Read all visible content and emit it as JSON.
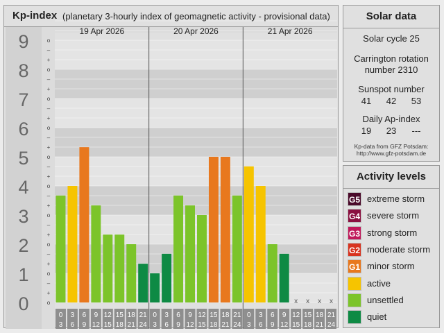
{
  "kp": {
    "title": "Kp-index",
    "subtitle": "(planetary 3-hourly index of geomagnetic activity - provisional data)",
    "y_labels": [
      "0",
      "1",
      "2",
      "3",
      "4",
      "5",
      "6",
      "7",
      "8",
      "9"
    ],
    "mini_labels": [
      "o",
      "+",
      "–",
      "o",
      "+",
      "–",
      "o",
      "+",
      "–",
      "o",
      "+",
      "–",
      "o",
      "+",
      "–",
      "o",
      "+",
      "–",
      "o",
      "+",
      "–",
      "o",
      "+",
      "–",
      "o",
      "+",
      "–",
      "o"
    ],
    "hours_start": [
      "0",
      "3",
      "6",
      "9",
      "12",
      "15",
      "18",
      "21"
    ],
    "hours_end": [
      "3",
      "6",
      "9",
      "12",
      "15",
      "18",
      "21",
      "24"
    ]
  },
  "chart_data": {
    "type": "bar",
    "days": [
      "19 Apr 2026",
      "20 Apr 2026",
      "21 Apr 2026"
    ],
    "ylim": [
      0,
      9
    ],
    "values": [
      [
        3.67,
        4.0,
        5.33,
        3.33,
        2.33,
        2.33,
        2.0,
        1.33
      ],
      [
        1.0,
        1.67,
        3.67,
        3.33,
        3.0,
        5.0,
        5.0,
        3.67
      ],
      [
        4.67,
        4.0,
        2.0,
        1.67,
        null,
        null,
        null,
        null
      ]
    ],
    "missing_marker": "x"
  },
  "solar": {
    "title": "Solar data",
    "cycle_label": "Solar cycle 25",
    "rotation_line1": "Carrington rotation",
    "rotation_line2": "number 2310",
    "sunspot_label": "Sunspot number",
    "sunspot_values": [
      "41",
      "42",
      "53"
    ],
    "ap_label": "Daily Ap-index",
    "ap_values": [
      "19",
      "23",
      "---"
    ],
    "source_line1": "Kp-data from GFZ Potsdam:",
    "source_line2": "http://www.gfz-potsdam.de"
  },
  "activity": {
    "title": "Activity levels",
    "levels": [
      {
        "code": "G5",
        "label": "extreme storm",
        "color": "#4a0a2a"
      },
      {
        "code": "G4",
        "label": "severe storm",
        "color": "#8a1040"
      },
      {
        "code": "G3",
        "label": "strong storm",
        "color": "#c0185a"
      },
      {
        "code": "G2",
        "label": "moderate storm",
        "color": "#d8331f"
      },
      {
        "code": "G1",
        "label": "minor storm",
        "color": "#e8781e"
      },
      {
        "code": "",
        "label": "active",
        "color": "#f6c400"
      },
      {
        "code": "",
        "label": "unsettled",
        "color": "#7cc42a"
      },
      {
        "code": "",
        "label": "quiet",
        "color": "#0e8a44"
      }
    ]
  }
}
